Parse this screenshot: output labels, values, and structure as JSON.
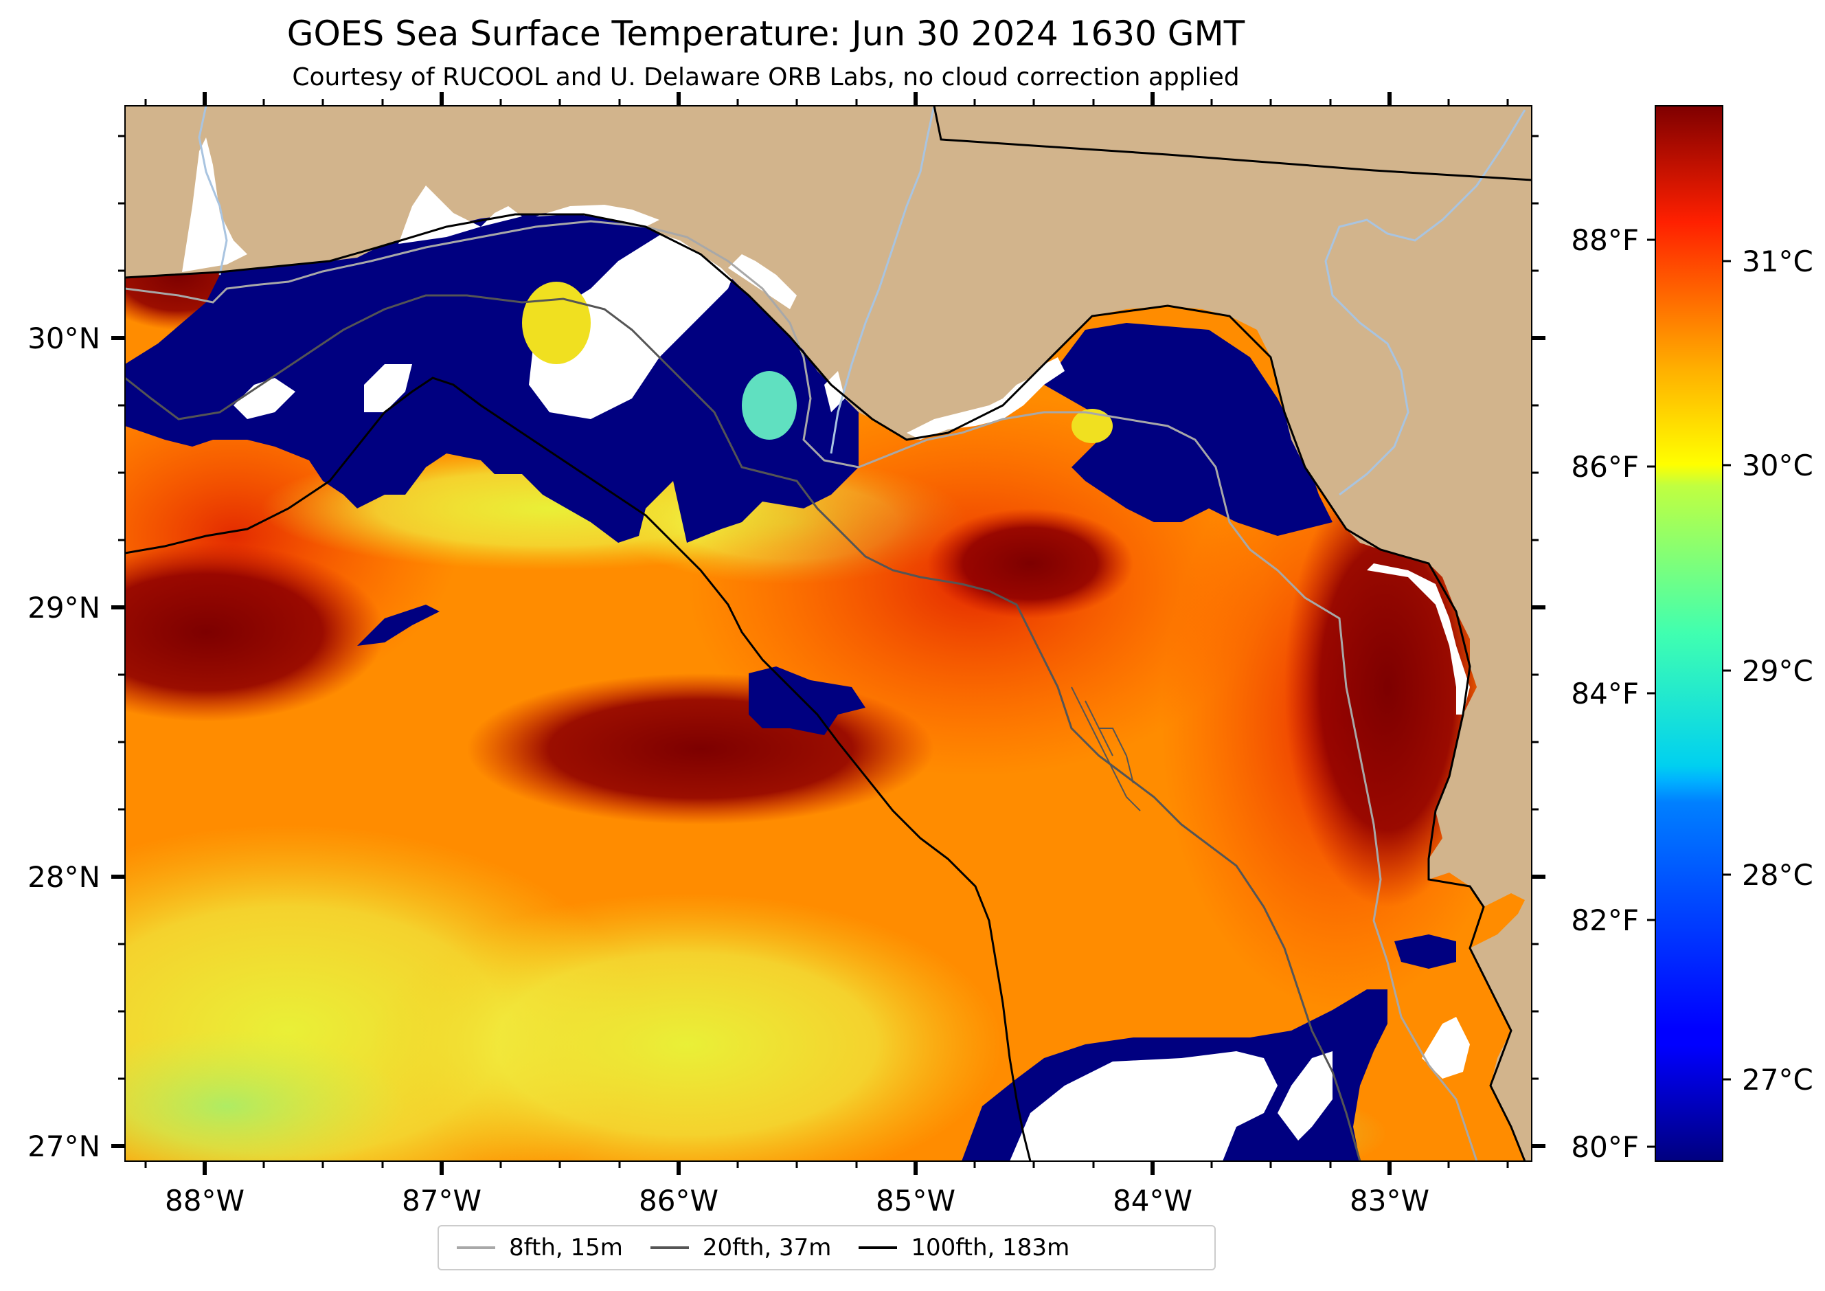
{
  "title": "GOES Sea Surface Temperature: Jun 30 2024 1630 GMT",
  "subtitle": "Courtesy of RUCOOL and U. Delaware ORB Labs, no cloud correction applied",
  "map": {
    "lon_labels": [
      "88°W",
      "87°W",
      "86°W",
      "85°W",
      "84°W",
      "83°W"
    ],
    "lat_labels": [
      "30°N",
      "29°N",
      "28°N",
      "27°N"
    ],
    "lon_range": [
      -88.33,
      -82.4
    ],
    "lat_range": [
      26.94,
      30.86
    ],
    "colors": {
      "land": "#d2b48c",
      "cloud_mask": "#000080",
      "river": "#a9c4e0",
      "coast": "#000000"
    }
  },
  "colorbar": {
    "celsius_labels": [
      "31°C",
      "30°C",
      "29°C",
      "28°C",
      "27°C"
    ],
    "fahrenheit_labels": [
      "88°F",
      "86°F",
      "84°F",
      "82°F",
      "80°F"
    ],
    "range_c": [
      26.6,
      31.8
    ],
    "colormap": "jet"
  },
  "legend": {
    "items": [
      {
        "label": "8fth, 15m",
        "color": "#a8a8a8"
      },
      {
        "label": "20fth, 37m",
        "color": "#555555"
      },
      {
        "label": "100fth, 183m",
        "color": "#000000"
      }
    ]
  }
}
